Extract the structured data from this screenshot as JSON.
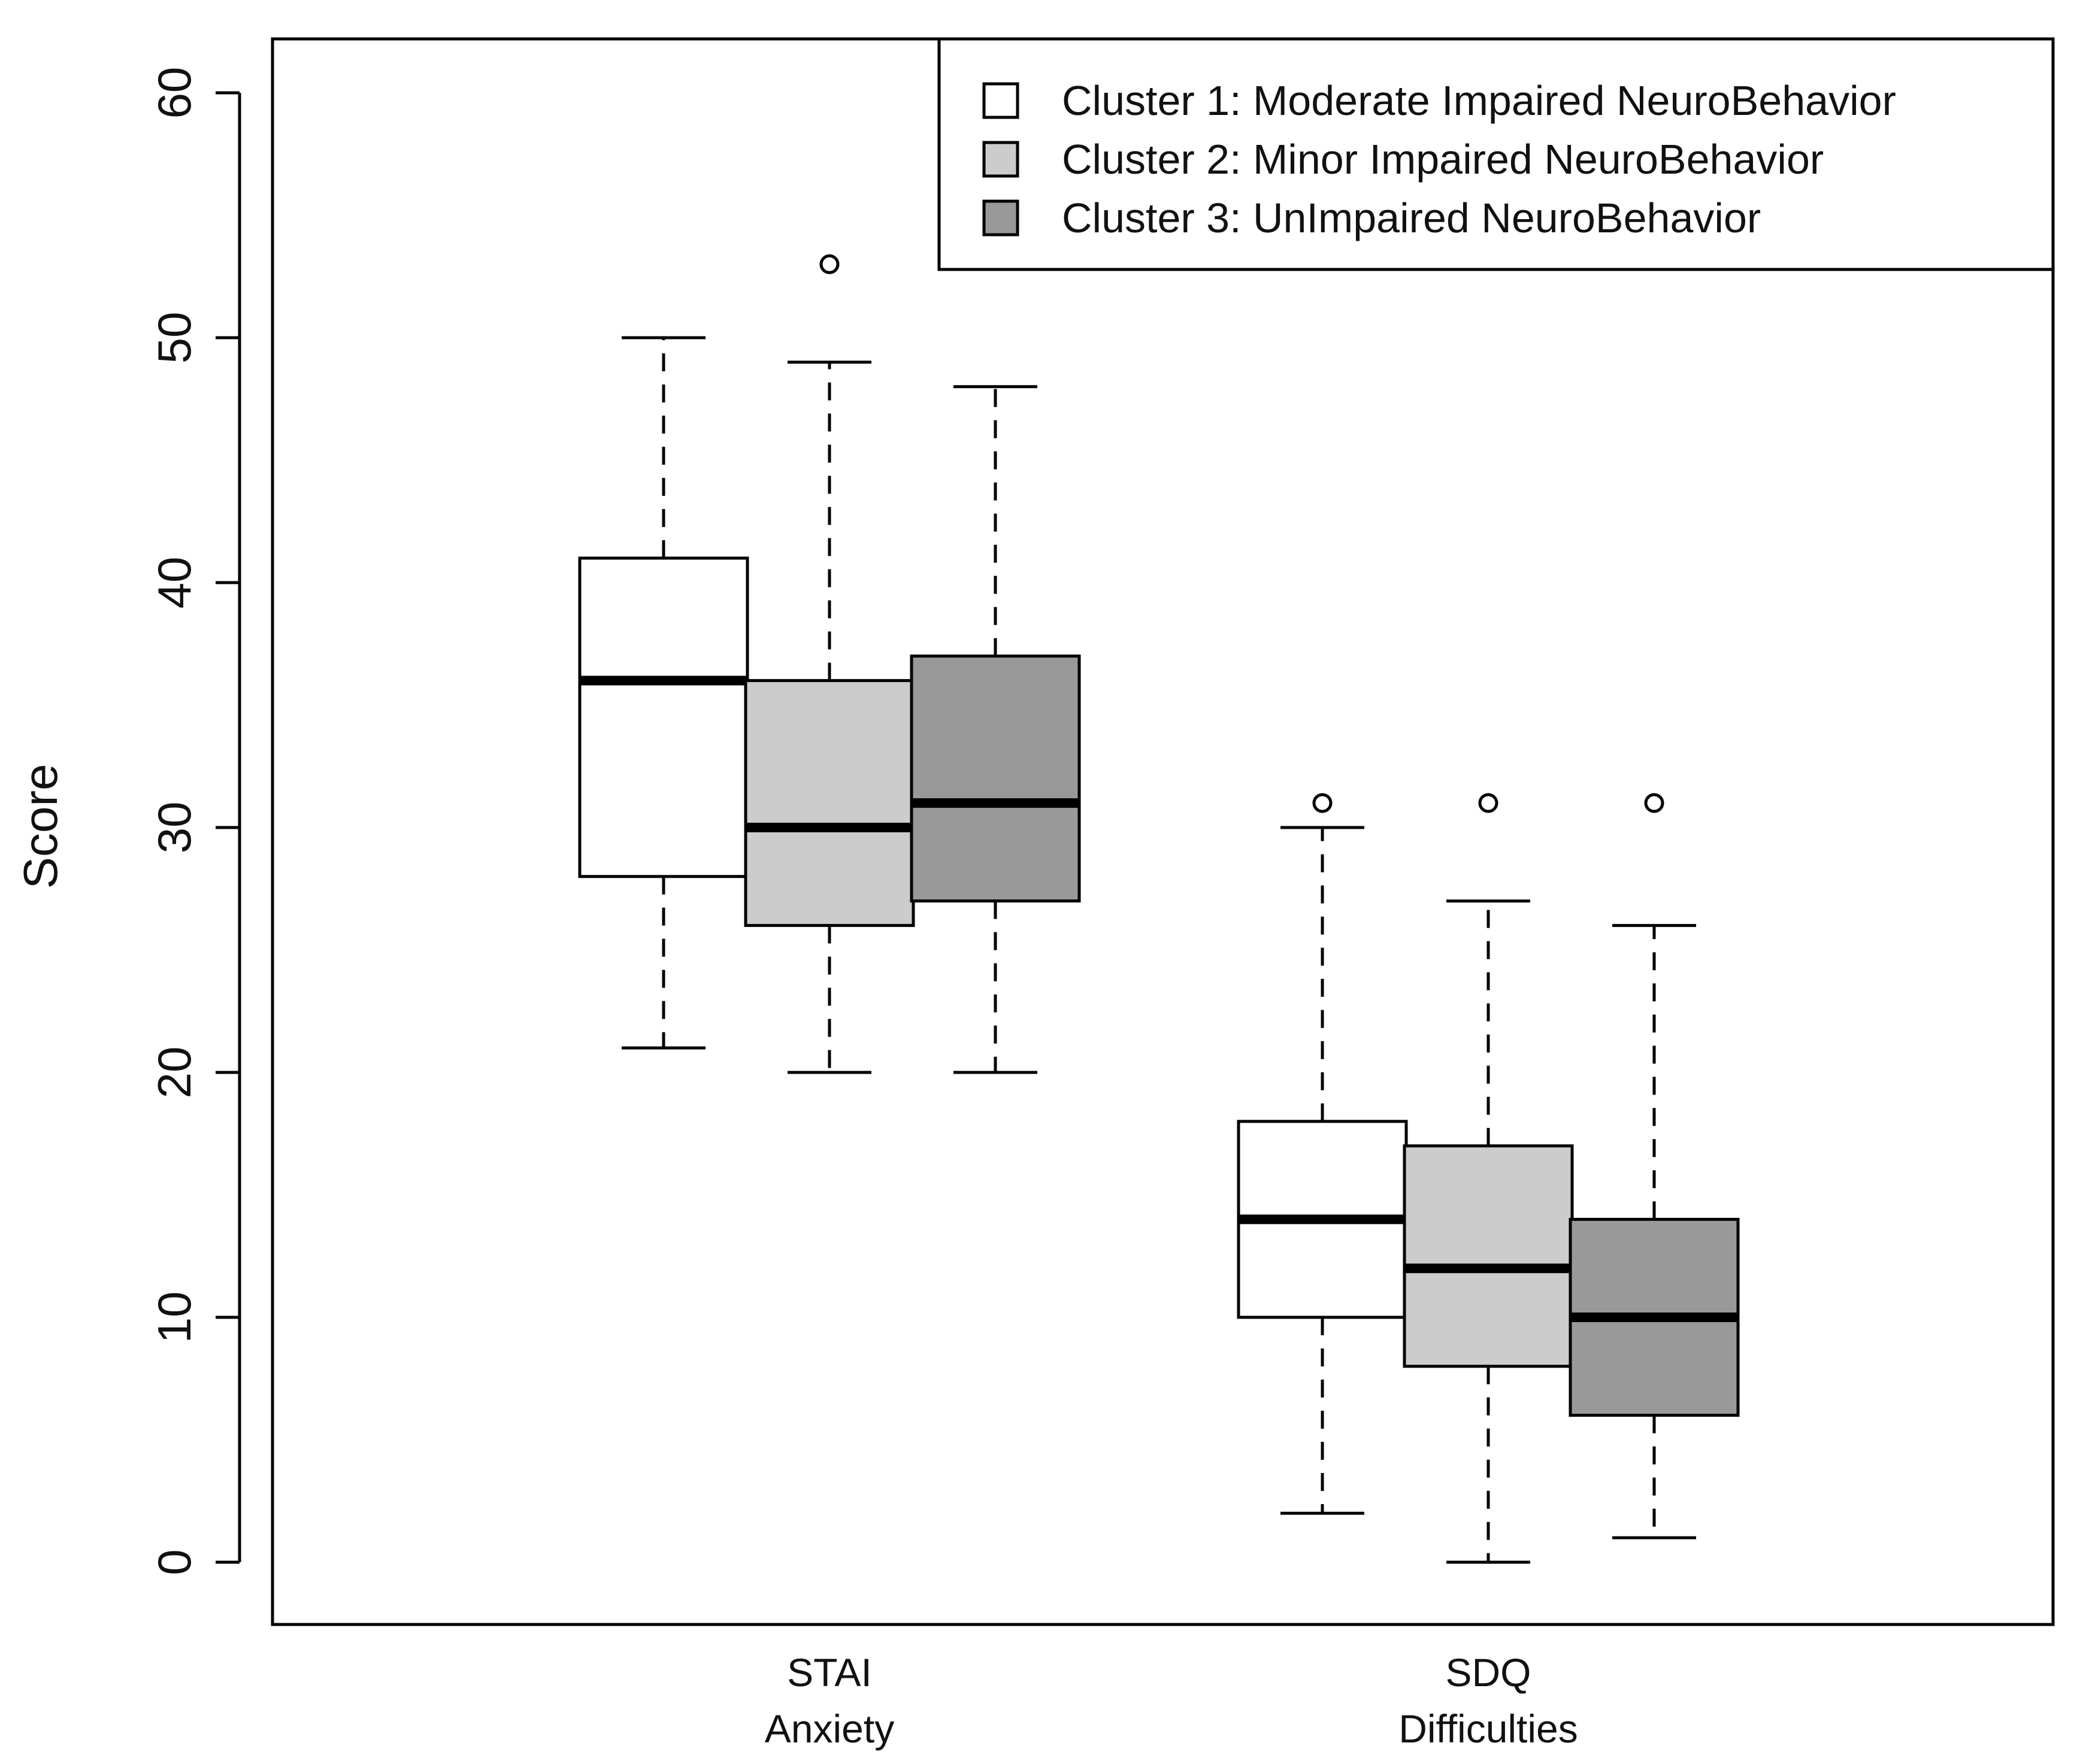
{
  "chart_data": {
    "type": "boxplot",
    "title": "",
    "ylabel": "Score",
    "xlabel": "",
    "ylim": [
      0,
      60
    ],
    "yticks": [
      0,
      10,
      20,
      30,
      40,
      50,
      60
    ],
    "groups": [
      {
        "line1": "STAI",
        "line2": "Anxiety"
      },
      {
        "line1": "SDQ",
        "line2": "Difficulties"
      }
    ],
    "series": [
      {
        "name": "Cluster 1: Moderate Impaired NeuroBehavior",
        "color": "#ffffff",
        "boxes": [
          {
            "whisker_low": 21,
            "q1": 28,
            "median": 36,
            "q3": 41,
            "whisker_high": 50,
            "outliers": []
          },
          {
            "whisker_low": 2,
            "q1": 10,
            "median": 14,
            "q3": 18,
            "whisker_high": 30,
            "outliers": [
              31
            ]
          }
        ]
      },
      {
        "name": "Cluster 2: Minor Impaired NeuroBehavior",
        "color": "#cccccc",
        "boxes": [
          {
            "whisker_low": 20,
            "q1": 26,
            "median": 30,
            "q3": 36,
            "whisker_high": 49,
            "outliers": [
              53
            ]
          },
          {
            "whisker_low": 0,
            "q1": 8,
            "median": 12,
            "q3": 17,
            "whisker_high": 27,
            "outliers": [
              31
            ]
          }
        ]
      },
      {
        "name": "Cluster 3: UnImpaired NeuroBehavior",
        "color": "#999999",
        "boxes": [
          {
            "whisker_low": 20,
            "q1": 27,
            "median": 31,
            "q3": 37,
            "whisker_high": 48,
            "outliers": []
          },
          {
            "whisker_low": 1,
            "q1": 6,
            "median": 10,
            "q3": 14,
            "whisker_high": 26,
            "outliers": [
              31
            ]
          }
        ]
      }
    ],
    "legend": {
      "position": "top-right",
      "entries": [
        "Cluster 1: Moderate Impaired NeuroBehavior",
        "Cluster 2: Minor Impaired NeuroBehavior",
        "Cluster 3: UnImpaired NeuroBehavior"
      ]
    }
  }
}
